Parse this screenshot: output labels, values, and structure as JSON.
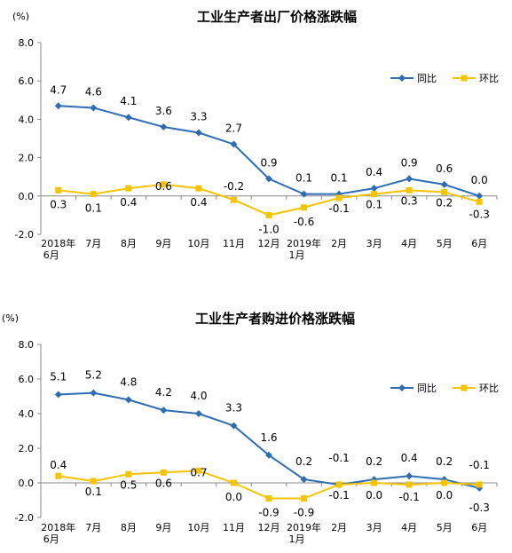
{
  "chart_data": [
    {
      "type": "line",
      "title": "工业生产者出厂价格涨跌幅",
      "unit": "(%)",
      "categories": [
        "2018年\n6月",
        "7月",
        "8月",
        "9月",
        "10月",
        "11月",
        "12月",
        "2019年\n1月",
        "2月",
        "3月",
        "4月",
        "5月",
        "6月"
      ],
      "series": [
        {
          "name": "同比",
          "color": "#2E6DB4",
          "marker": "diamond",
          "values": [
            4.7,
            4.6,
            4.1,
            3.6,
            3.3,
            2.7,
            0.9,
            0.1,
            0.1,
            0.4,
            0.9,
            0.6,
            0.0
          ],
          "labels": [
            "4.7",
            "4.6",
            "4.1",
            "3.6",
            "3.3",
            "2.7",
            "0.9",
            "0.1",
            "0.1",
            "0.4",
            "0.9",
            "0.6",
            "0.0"
          ]
        },
        {
          "name": "环比",
          "color": "#F5C400",
          "marker": "square",
          "values": [
            0.3,
            0.1,
            0.4,
            0.6,
            0.4,
            -0.2,
            -1.0,
            -0.6,
            -0.1,
            0.1,
            0.3,
            0.2,
            -0.3
          ],
          "labels": [
            "0.3",
            "0.1",
            "0.4",
            "0.6",
            "0.4",
            "-0.2",
            "-1.0",
            "-0.6",
            "-0.1",
            "0.1",
            "0.3",
            "0.2",
            "-0.3"
          ]
        }
      ],
      "ylim": [
        -2.0,
        8.0
      ],
      "yticks": [
        "8.0",
        "6.0",
        "4.0",
        "2.0",
        "0.0",
        "-2.0"
      ],
      "legend": "top-right",
      "grid": false
    },
    {
      "type": "line",
      "title": "工业生产者购进价格涨跌幅",
      "unit": "(%)",
      "categories": [
        "2018年\n6月",
        "7月",
        "8月",
        "9月",
        "10月",
        "11月",
        "12月",
        "2019年\n1月",
        "2月",
        "3月",
        "4月",
        "5月",
        "6月"
      ],
      "series": [
        {
          "name": "同比",
          "color": "#2E6DB4",
          "marker": "diamond",
          "values": [
            5.1,
            5.2,
            4.8,
            4.2,
            4.0,
            3.3,
            1.6,
            0.2,
            -0.1,
            0.2,
            0.4,
            0.2,
            -0.3
          ],
          "labels": [
            "5.1",
            "5.2",
            "4.8",
            "4.2",
            "4.0",
            "3.3",
            "1.6",
            "0.2",
            "-0.1",
            "0.2",
            "0.4",
            "0.2",
            "-0.3"
          ]
        },
        {
          "name": "环比",
          "color": "#F5C400",
          "marker": "square",
          "values": [
            0.4,
            0.1,
            0.5,
            0.6,
            0.7,
            0.0,
            -0.9,
            -0.9,
            -0.1,
            0.0,
            -0.1,
            0.0,
            -0.1
          ],
          "labels": [
            "0.4",
            "0.1",
            "0.5",
            "0.6",
            "0.7",
            "0.0",
            "-0.9",
            "-0.9",
            "-0.1",
            "0.0",
            "-0.1",
            "0.0",
            "-0.1"
          ]
        }
      ],
      "ylim": [
        -2.0,
        8.0
      ],
      "yticks": [
        "8.0",
        "6.0",
        "4.0",
        "2.0",
        "0.0",
        "-2.0"
      ],
      "legend": "top-right",
      "grid": false
    }
  ]
}
